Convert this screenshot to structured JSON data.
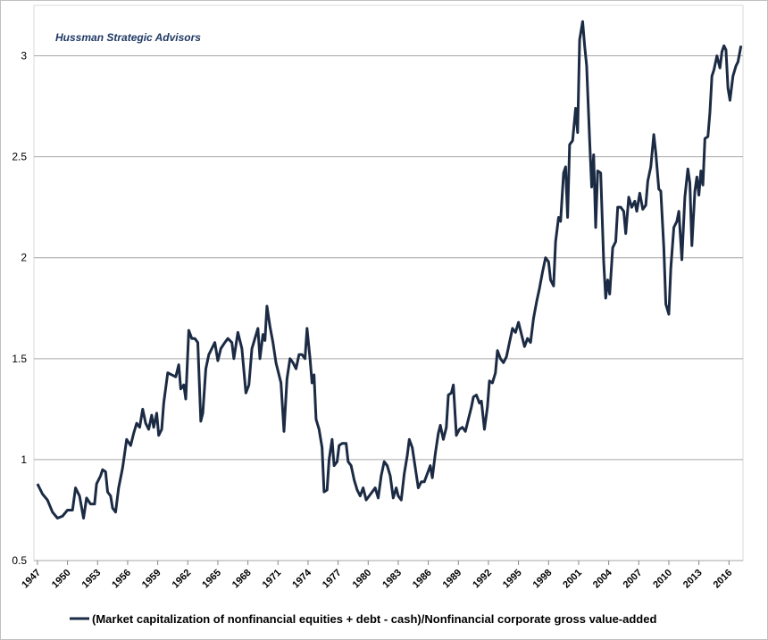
{
  "chart_data": {
    "type": "line",
    "annotation": "Hussman Strategic Advisors",
    "x": [
      1947.0,
      1947.5,
      1948.0,
      1948.5,
      1949.0,
      1949.5,
      1950.0,
      1950.5,
      1950.8,
      1951.2,
      1951.6,
      1951.9,
      1952.3,
      1952.7,
      1952.9,
      1953.3,
      1953.5,
      1953.8,
      1954.0,
      1954.3,
      1954.5,
      1954.8,
      1955.1,
      1955.5,
      1955.9,
      1956.3,
      1956.6,
      1956.9,
      1957.2,
      1957.5,
      1957.8,
      1958.1,
      1958.4,
      1958.6,
      1958.9,
      1959.1,
      1959.4,
      1959.6,
      1960.0,
      1960.4,
      1960.8,
      1961.1,
      1961.3,
      1961.6,
      1961.8,
      1962.1,
      1962.4,
      1962.7,
      1963.0,
      1963.3,
      1963.5,
      1963.8,
      1964.1,
      1964.4,
      1964.7,
      1965.0,
      1965.3,
      1965.7,
      1966.0,
      1966.4,
      1966.6,
      1967.0,
      1967.4,
      1967.8,
      1968.1,
      1968.4,
      1968.7,
      1969.0,
      1969.2,
      1969.5,
      1969.7,
      1969.9,
      1970.2,
      1970.5,
      1970.8,
      1971.1,
      1971.3,
      1971.6,
      1971.9,
      1972.2,
      1972.5,
      1972.8,
      1973.1,
      1973.4,
      1973.7,
      1973.9,
      1974.2,
      1974.4,
      1974.6,
      1974.8,
      1975.1,
      1975.4,
      1975.6,
      1975.9,
      1976.1,
      1976.4,
      1976.6,
      1976.9,
      1977.1,
      1977.4,
      1977.8,
      1978.0,
      1978.3,
      1978.6,
      1978.9,
      1979.2,
      1979.5,
      1979.8,
      1980.1,
      1980.4,
      1980.7,
      1981.0,
      1981.3,
      1981.6,
      1981.9,
      1982.2,
      1982.5,
      1982.8,
      1983.0,
      1983.3,
      1983.6,
      1983.9,
      1984.1,
      1984.4,
      1984.7,
      1985.0,
      1985.3,
      1985.6,
      1985.9,
      1986.2,
      1986.4,
      1986.7,
      1987.0,
      1987.2,
      1987.5,
      1987.8,
      1988.0,
      1988.3,
      1988.5,
      1988.8,
      1989.1,
      1989.4,
      1989.7,
      1990.0,
      1990.3,
      1990.5,
      1990.8,
      1991.1,
      1991.3,
      1991.6,
      1991.9,
      1992.1,
      1992.4,
      1992.7,
      1992.9,
      1993.2,
      1993.5,
      1993.8,
      1994.1,
      1994.4,
      1994.7,
      1995.0,
      1995.3,
      1995.6,
      1995.9,
      1996.2,
      1996.5,
      1996.8,
      1997.1,
      1997.4,
      1997.7,
      1998.0,
      1998.2,
      1998.5,
      1998.7,
      1999.0,
      1999.2,
      1999.5,
      1999.7,
      1999.9,
      2000.1,
      2000.4,
      2000.7,
      2000.9,
      2001.1,
      2001.4,
      2001.6,
      2001.8,
      2002.1,
      2002.3,
      2002.5,
      2002.7,
      2002.9,
      2003.2,
      2003.5,
      2003.7,
      2003.9,
      2004.1,
      2004.4,
      2004.7,
      2004.9,
      2005.2,
      2005.5,
      2005.7,
      2006.0,
      2006.3,
      2006.6,
      2006.8,
      2007.1,
      2007.4,
      2007.7,
      2007.9,
      2008.2,
      2008.5,
      2008.7,
      2009.0,
      2009.2,
      2009.5,
      2009.7,
      2010.0,
      2010.2,
      2010.5,
      2010.8,
      2011.0,
      2011.3,
      2011.6,
      2011.9,
      2012.1,
      2012.3,
      2012.6,
      2012.8,
      2013.0,
      2013.2,
      2013.4,
      2013.6,
      2013.9,
      2014.1,
      2014.3,
      2014.5,
      2014.8,
      2015.1,
      2015.3,
      2015.5,
      2015.7,
      2015.9,
      2016.1,
      2016.4,
      2016.7,
      2016.9,
      2017.2
    ],
    "series": [
      {
        "name": "(Market capitalization of nonfinancial equities + debt - cash)/Nonfinancial corporate gross value-added",
        "color": "#1c2b44",
        "values": [
          0.88,
          0.83,
          0.8,
          0.74,
          0.71,
          0.72,
          0.75,
          0.75,
          0.86,
          0.82,
          0.71,
          0.81,
          0.78,
          0.78,
          0.88,
          0.92,
          0.95,
          0.94,
          0.84,
          0.82,
          0.76,
          0.74,
          0.86,
          0.96,
          1.1,
          1.07,
          1.13,
          1.18,
          1.16,
          1.25,
          1.18,
          1.15,
          1.22,
          1.16,
          1.23,
          1.12,
          1.15,
          1.28,
          1.43,
          1.42,
          1.41,
          1.47,
          1.35,
          1.37,
          1.3,
          1.64,
          1.6,
          1.6,
          1.58,
          1.19,
          1.23,
          1.45,
          1.52,
          1.55,
          1.58,
          1.49,
          1.55,
          1.58,
          1.6,
          1.58,
          1.5,
          1.63,
          1.55,
          1.33,
          1.37,
          1.55,
          1.6,
          1.65,
          1.5,
          1.62,
          1.59,
          1.76,
          1.66,
          1.58,
          1.48,
          1.42,
          1.38,
          1.14,
          1.4,
          1.5,
          1.48,
          1.45,
          1.52,
          1.52,
          1.5,
          1.65,
          1.5,
          1.38,
          1.42,
          1.2,
          1.15,
          1.06,
          0.84,
          0.85,
          1.0,
          1.1,
          0.97,
          0.99,
          1.07,
          1.08,
          1.08,
          0.99,
          0.97,
          0.9,
          0.85,
          0.82,
          0.86,
          0.8,
          0.82,
          0.84,
          0.86,
          0.81,
          0.92,
          0.99,
          0.97,
          0.92,
          0.81,
          0.86,
          0.82,
          0.8,
          0.93,
          1.02,
          1.1,
          1.06,
          0.96,
          0.86,
          0.89,
          0.89,
          0.93,
          0.97,
          0.91,
          1.03,
          1.13,
          1.17,
          1.1,
          1.16,
          1.32,
          1.33,
          1.37,
          1.12,
          1.15,
          1.16,
          1.14,
          1.2,
          1.26,
          1.31,
          1.32,
          1.28,
          1.29,
          1.15,
          1.26,
          1.39,
          1.38,
          1.43,
          1.54,
          1.5,
          1.48,
          1.51,
          1.58,
          1.65,
          1.63,
          1.68,
          1.62,
          1.56,
          1.6,
          1.58,
          1.7,
          1.78,
          1.85,
          1.93,
          2.0,
          1.98,
          1.89,
          1.86,
          2.08,
          2.2,
          2.18,
          2.42,
          2.45,
          2.2,
          2.56,
          2.58,
          2.74,
          2.62,
          3.08,
          3.17,
          3.05,
          2.95,
          2.58,
          2.35,
          2.51,
          2.15,
          2.43,
          2.42,
          1.98,
          1.8,
          1.89,
          1.82,
          2.05,
          2.08,
          2.25,
          2.25,
          2.23,
          2.12,
          2.3,
          2.25,
          2.28,
          2.23,
          2.32,
          2.24,
          2.26,
          2.38,
          2.45,
          2.61,
          2.52,
          2.34,
          2.33,
          2.05,
          1.77,
          1.72,
          1.95,
          2.15,
          2.18,
          2.23,
          1.99,
          2.3,
          2.44,
          2.37,
          2.06,
          2.33,
          2.4,
          2.31,
          2.43,
          2.36,
          2.59,
          2.6,
          2.72,
          2.9,
          2.93,
          3.0,
          2.94,
          3.02,
          3.05,
          3.03,
          2.84,
          2.78,
          2.9,
          2.95,
          2.97,
          3.05
        ]
      }
    ],
    "xlim": [
      1946.65,
      2017.4
    ],
    "xticks": [
      1947,
      1950,
      1953,
      1956,
      1959,
      1962,
      1965,
      1968,
      1971,
      1974,
      1977,
      1980,
      1983,
      1986,
      1989,
      1992,
      1995,
      1998,
      2001,
      2004,
      2007,
      2010,
      2013,
      2016
    ],
    "ylim": [
      0.5,
      3.25
    ],
    "yticks": [
      0.5,
      1,
      1.5,
      2,
      2.5,
      3
    ],
    "grid": true
  }
}
